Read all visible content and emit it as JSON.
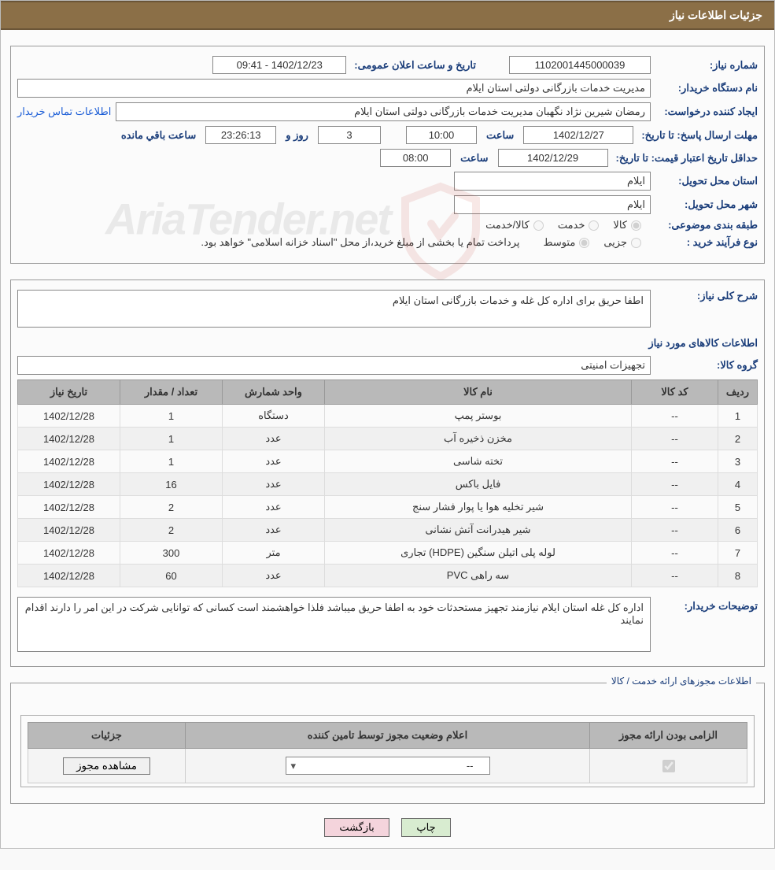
{
  "header": {
    "title": "جزئیات اطلاعات نیاز"
  },
  "need": {
    "label_number": "شماره نیاز:",
    "number": "1102001445000039",
    "label_pubdate": "تاریخ و ساعت اعلان عمومی:",
    "pubdate": "1402/12/23 - 09:41",
    "label_org": "نام دستگاه خریدار:",
    "org": "مدیریت خدمات بازرگانی دولتی استان ایلام",
    "label_creator": "ایجاد کننده درخواست:",
    "creator": "رمضان شیرین نژاد نگهبان مدیریت خدمات بازرگانی دولتی استان ایلام",
    "contact_link": "اطلاعات تماس خریدار",
    "deadline": {
      "label": "مهلت ارسال پاسخ:",
      "until": "تا تاریخ:",
      "date": "1402/12/27",
      "time_label": "ساعت",
      "time": "10:00",
      "days": "3",
      "days_label": "روز و",
      "countdown": "23:26:13",
      "remain_label": "ساعت باقي مانده"
    },
    "validity": {
      "label": "حداقل تاریخ اعتبار قیمت:",
      "until": "تا تاریخ:",
      "date": "1402/12/29",
      "time_label": "ساعت",
      "time": "08:00"
    },
    "province": {
      "label": "استان محل تحویل:",
      "value": "ایلام"
    },
    "city": {
      "label": "شهر محل تحویل:",
      "value": "ایلام"
    },
    "category": {
      "label": "طبقه بندی موضوعی:",
      "opt_goods": "کالا",
      "opt_service": "خدمت",
      "opt_goods_service": "کالا/خدمت"
    },
    "process": {
      "label": "نوع فرآیند خرید :",
      "opt_small": "جزیی",
      "opt_medium": "متوسط",
      "note": "پرداخت تمام یا بخشی از مبلغ خرید،از محل \"اسناد خزانه اسلامی\" خواهد بود."
    }
  },
  "desc": {
    "label": "شرح کلی نیاز:",
    "text": "اطفا حریق برای اداره کل غله و خدمات بازرگانی استان ایلام",
    "goods_title": "اطلاعات کالاهای مورد نیاز",
    "group_label": "گروه کالا:",
    "group_value": "تجهیزات امنیتی"
  },
  "table": {
    "columns": [
      "ردیف",
      "کد کالا",
      "نام کالا",
      "واحد شمارش",
      "تعداد / مقدار",
      "تاریخ نیاز"
    ],
    "col_widths": [
      "50px",
      "110px",
      "auto",
      "130px",
      "130px",
      "130px"
    ],
    "rows": [
      [
        "1",
        "--",
        "بوستر پمپ",
        "دستگاه",
        "1",
        "1402/12/28"
      ],
      [
        "2",
        "--",
        "مخزن ذخیره آب",
        "عدد",
        "1",
        "1402/12/28"
      ],
      [
        "3",
        "--",
        "تخته شاسی",
        "عدد",
        "1",
        "1402/12/28"
      ],
      [
        "4",
        "--",
        "فایل باکس",
        "عدد",
        "16",
        "1402/12/28"
      ],
      [
        "5",
        "--",
        "شیر تخلیه هوا یا پوار فشار سنج",
        "عدد",
        "2",
        "1402/12/28"
      ],
      [
        "6",
        "--",
        "شیر هیدرانت آتش نشانی",
        "عدد",
        "2",
        "1402/12/28"
      ],
      [
        "7",
        "--",
        "لوله پلی اتیلن سنگین (HDPE) تجاری",
        "متر",
        "300",
        "1402/12/28"
      ],
      [
        "8",
        "--",
        "سه راهی PVC",
        "عدد",
        "60",
        "1402/12/28"
      ]
    ]
  },
  "buyer_note": {
    "label": "توضیحات خریدار:",
    "text": "اداره کل غله استان ایلام نیازمند تجهیز مستحدثات خود به اطفا حریق میباشد فلذا خواهشمند است کسانی که توانایی شرکت در این امر را دارند اقدام نمایند"
  },
  "license": {
    "legend": "اطلاعات مجوزهای ارائه خدمت / کالا",
    "columns": [
      "الزامی بودن ارائه مجوز",
      "اعلام وضعیت مجوز توسط تامین کننده",
      "جزئیات"
    ],
    "select_value": "--",
    "view_btn": "مشاهده مجوز"
  },
  "footer": {
    "print": "چاپ",
    "back": "بازگشت"
  },
  "watermark": {
    "text": "AriaTender.net"
  },
  "colors": {
    "header_bg": "#8b6f47",
    "label_color": "#1a3d7a",
    "link_color": "#1a5cd6",
    "th_bg": "#b9b9b9",
    "border": "#999999"
  }
}
